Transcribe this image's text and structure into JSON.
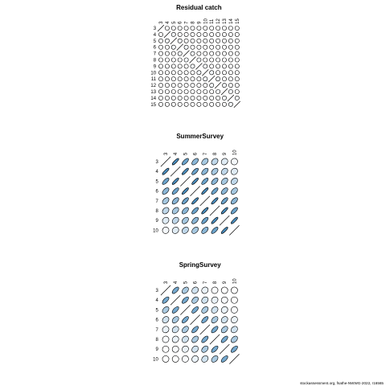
{
  "footer": {
    "caption": "stockassessment.org, fsathe-NWWG-2022, r16565"
  },
  "colors": {
    "positive": "#2b7bb5",
    "negative": "#ffffff",
    "outline": "#000000"
  },
  "chart_data": [
    {
      "type": "correlation_matrix",
      "title": "Residual catch",
      "labels": [
        "3",
        "4",
        "5",
        "6",
        "7",
        "8",
        "9",
        "10",
        "11",
        "12",
        "13",
        "14",
        "15"
      ],
      "correlations": [
        [
          1,
          -0.02,
          -0.02,
          -0.03,
          -0.02,
          -0.03,
          -0.02,
          -0.02,
          -0.02,
          -0.02,
          -0.02,
          -0.02,
          -0.02
        ],
        [
          -0.02,
          1,
          0.05,
          -0.03,
          -0.02,
          -0.03,
          -0.02,
          -0.02,
          -0.02,
          -0.02,
          -0.02,
          -0.02,
          -0.02
        ],
        [
          -0.02,
          0.05,
          1,
          0.05,
          -0.02,
          -0.03,
          -0.02,
          -0.02,
          -0.02,
          -0.02,
          -0.02,
          -0.02,
          -0.02
        ],
        [
          -0.03,
          -0.03,
          0.05,
          1,
          0.05,
          -0.03,
          -0.02,
          -0.02,
          -0.02,
          -0.02,
          -0.02,
          -0.02,
          -0.02
        ],
        [
          -0.02,
          -0.02,
          -0.02,
          0.05,
          1,
          0.05,
          -0.03,
          -0.02,
          -0.02,
          -0.02,
          -0.02,
          -0.02,
          -0.02
        ],
        [
          -0.03,
          -0.03,
          -0.03,
          -0.03,
          0.05,
          1,
          0.05,
          -0.03,
          -0.02,
          -0.02,
          -0.02,
          -0.02,
          -0.02
        ],
        [
          -0.02,
          -0.02,
          -0.02,
          -0.02,
          -0.03,
          0.05,
          1,
          0.05,
          -0.03,
          -0.02,
          -0.02,
          -0.02,
          -0.02
        ],
        [
          -0.02,
          -0.02,
          -0.02,
          -0.02,
          -0.02,
          -0.03,
          0.05,
          1,
          0.05,
          -0.02,
          -0.02,
          -0.02,
          -0.02
        ],
        [
          -0.02,
          -0.02,
          -0.02,
          -0.02,
          -0.02,
          -0.02,
          -0.03,
          0.05,
          1,
          0.05,
          -0.03,
          -0.02,
          -0.02
        ],
        [
          -0.02,
          -0.02,
          -0.02,
          -0.02,
          -0.02,
          -0.02,
          -0.02,
          -0.02,
          0.05,
          1,
          0.05,
          -0.03,
          -0.02
        ],
        [
          -0.02,
          -0.02,
          -0.02,
          -0.02,
          -0.02,
          -0.02,
          -0.02,
          -0.02,
          -0.03,
          0.05,
          1,
          0.05,
          -0.03
        ],
        [
          -0.02,
          -0.02,
          -0.02,
          -0.02,
          -0.02,
          -0.02,
          -0.02,
          -0.02,
          -0.02,
          -0.03,
          0.05,
          1,
          0.05
        ],
        [
          -0.02,
          -0.02,
          -0.02,
          -0.02,
          -0.02,
          -0.02,
          -0.02,
          -0.02,
          -0.02,
          -0.02,
          -0.03,
          0.05,
          1
        ]
      ]
    },
    {
      "type": "correlation_matrix",
      "title": "SummerSurvey",
      "labels": [
        "3",
        "4",
        "5",
        "6",
        "7",
        "8",
        "9",
        "10"
      ],
      "correlations": [
        [
          1,
          0.85,
          0.7,
          0.55,
          0.42,
          0.3,
          0.15,
          0.05
        ],
        [
          0.85,
          1,
          0.85,
          0.7,
          0.55,
          0.42,
          0.3,
          0.15
        ],
        [
          0.7,
          0.85,
          1,
          0.85,
          0.7,
          0.55,
          0.42,
          0.3
        ],
        [
          0.55,
          0.7,
          0.85,
          1,
          0.85,
          0.7,
          0.55,
          0.42
        ],
        [
          0.42,
          0.55,
          0.7,
          0.85,
          1,
          0.85,
          0.7,
          0.55
        ],
        [
          0.3,
          0.42,
          0.55,
          0.7,
          0.85,
          1,
          0.85,
          0.7
        ],
        [
          0.15,
          0.3,
          0.42,
          0.55,
          0.7,
          0.85,
          1,
          0.85
        ],
        [
          0.05,
          0.15,
          0.3,
          0.42,
          0.55,
          0.7,
          0.85,
          1
        ]
      ]
    },
    {
      "type": "correlation_matrix",
      "title": "SpringSurvey",
      "labels": [
        "3",
        "4",
        "5",
        "6",
        "7",
        "8",
        "9",
        "10"
      ],
      "correlations": [
        [
          1,
          0.65,
          0.4,
          0.22,
          0.1,
          0.03,
          0.0,
          0.0
        ],
        [
          0.65,
          1,
          0.65,
          0.4,
          0.22,
          0.1,
          0.03,
          0.0
        ],
        [
          0.4,
          0.65,
          1,
          0.65,
          0.4,
          0.22,
          0.1,
          0.03
        ],
        [
          0.22,
          0.4,
          0.65,
          1,
          0.65,
          0.4,
          0.22,
          0.1
        ],
        [
          0.1,
          0.22,
          0.4,
          0.65,
          1,
          0.65,
          0.4,
          0.22
        ],
        [
          0.03,
          0.1,
          0.22,
          0.4,
          0.65,
          1,
          0.65,
          0.4
        ],
        [
          0.0,
          0.03,
          0.1,
          0.22,
          0.4,
          0.65,
          1,
          0.65
        ],
        [
          0.0,
          0.0,
          0.03,
          0.1,
          0.22,
          0.4,
          0.65,
          1
        ]
      ]
    }
  ]
}
